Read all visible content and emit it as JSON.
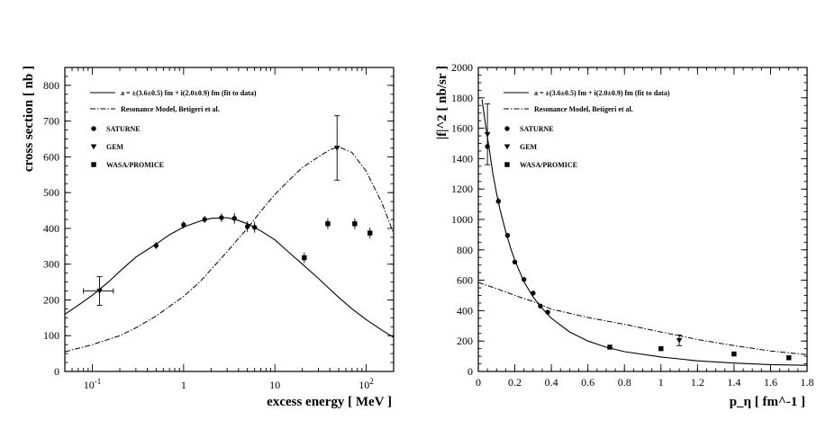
{
  "chart_data": [
    {
      "type": "scatter",
      "xscale": "log",
      "xlabel": "excess energy [ MeV ]",
      "ylabel": "cross section [ nb ]",
      "xlim": [
        0.05,
        200
      ],
      "ylim": [
        0,
        850
      ],
      "xticks": [
        {
          "v": 0.1,
          "base": "10",
          "exp": "-1"
        },
        {
          "v": 1,
          "base": "1",
          "exp": ""
        },
        {
          "v": 10,
          "base": "10",
          "exp": ""
        },
        {
          "v": 100,
          "base": "10",
          "exp": "2"
        }
      ],
      "yticks": [
        0,
        100,
        200,
        300,
        400,
        500,
        600,
        700,
        800
      ],
      "legend": [
        {
          "symbol": "line",
          "label": "a = ±(3.6±0.5) fm + i(2.0±0.9) fm (fit to data)"
        },
        {
          "symbol": "dashdot",
          "label": "Resonance Model, Betigeri et al."
        },
        {
          "symbol": "circle",
          "label": "SATURNE"
        },
        {
          "symbol": "triangle",
          "label": "GEM"
        },
        {
          "symbol": "square",
          "label": "WASA/PROMICE"
        }
      ],
      "series": [
        {
          "name": "a = ±(3.6±0.5) fm + i(2.0±0.9) fm (fit to data)",
          "kind": "line",
          "points": [
            [
              0.05,
              160
            ],
            [
              0.07,
              185
            ],
            [
              0.1,
              213
            ],
            [
              0.15,
              250
            ],
            [
              0.2,
              280
            ],
            [
              0.3,
              320
            ],
            [
              0.5,
              356
            ],
            [
              0.7,
              382
            ],
            [
              1,
              404
            ],
            [
              1.5,
              420
            ],
            [
              2,
              428
            ],
            [
              3,
              430
            ],
            [
              4,
              422
            ],
            [
              5,
              413
            ],
            [
              7,
              393
            ],
            [
              10,
              368
            ],
            [
              15,
              328
            ],
            [
              20,
              300
            ],
            [
              30,
              260
            ],
            [
              50,
              207
            ],
            [
              70,
              175
            ],
            [
              100,
              145
            ],
            [
              150,
              115
            ],
            [
              200,
              95
            ]
          ]
        },
        {
          "name": "Resonance Model, Betigeri et al.",
          "kind": "dashdot",
          "points": [
            [
              0.05,
              55
            ],
            [
              0.1,
              75
            ],
            [
              0.2,
              100
            ],
            [
              0.3,
              122
            ],
            [
              0.5,
              155
            ],
            [
              1,
              210
            ],
            [
              1.5,
              250
            ],
            [
              2,
              285
            ],
            [
              3,
              335
            ],
            [
              4,
              372
            ],
            [
              5,
              400
            ],
            [
              7,
              448
            ],
            [
              10,
              495
            ],
            [
              15,
              540
            ],
            [
              20,
              570
            ],
            [
              30,
              600
            ],
            [
              40,
              620
            ],
            [
              50,
              628
            ],
            [
              70,
              612
            ],
            [
              100,
              560
            ],
            [
              150,
              470
            ],
            [
              200,
              385
            ]
          ]
        },
        {
          "name": "SATURNE",
          "kind": "circle",
          "points": [
            [
              0.5,
              352,
              10
            ],
            [
              1,
              410,
              10
            ],
            [
              1.7,
              425,
              10
            ],
            [
              2.6,
              430,
              12
            ],
            [
              3.6,
              428,
              15
            ],
            [
              5,
              405,
              15
            ],
            [
              6,
              403,
              15
            ]
          ]
        },
        {
          "name": "GEM",
          "kind": "triangle",
          "points": [
            [
              0.12,
              225,
              40,
              0.08,
              0.17
            ],
            [
              48,
              625,
              90,
              null,
              null
            ]
          ]
        },
        {
          "name": "WASA/PROMICE",
          "kind": "square",
          "points": [
            [
              21,
              318,
              15
            ],
            [
              38,
              413,
              15
            ],
            [
              75,
              413,
              15
            ],
            [
              110,
              387,
              15
            ]
          ]
        }
      ]
    },
    {
      "type": "scatter",
      "xscale": "linear",
      "xlabel": "p_η [ fm^-1 ]",
      "ylabel": "|f|^2 [ nb/sr ]",
      "xlim": [
        0,
        1.8
      ],
      "ylim": [
        0,
        2000
      ],
      "xticks": [
        0,
        0.2,
        0.4,
        0.6,
        0.8,
        1,
        1.2,
        1.4,
        1.6,
        1.8
      ],
      "yticks": [
        0,
        200,
        400,
        600,
        800,
        1000,
        1200,
        1400,
        1600,
        1800,
        2000
      ],
      "legend": [
        {
          "symbol": "line",
          "label": "a = ±(3.6±0.5) fm + i(2.0±0.9) fm (fit to data)"
        },
        {
          "symbol": "dashdot",
          "label": "Resonance Model, Betigeri et al."
        },
        {
          "symbol": "circle",
          "label": "SATURNE"
        },
        {
          "symbol": "triangle",
          "label": "GEM"
        },
        {
          "symbol": "square",
          "label": "WASA/PROMICE"
        }
      ],
      "series": [
        {
          "name": "a = ±(3.6±0.5) fm + i(2.0±0.9) fm (fit to data)",
          "kind": "line",
          "points": [
            [
              0.02,
              1790
            ],
            [
              0.04,
              1620
            ],
            [
              0.06,
              1460
            ],
            [
              0.08,
              1300
            ],
            [
              0.1,
              1170
            ],
            [
              0.12,
              1060
            ],
            [
              0.15,
              920
            ],
            [
              0.18,
              800
            ],
            [
              0.2,
              730
            ],
            [
              0.25,
              590
            ],
            [
              0.3,
              490
            ],
            [
              0.35,
              415
            ],
            [
              0.4,
              350
            ],
            [
              0.5,
              260
            ],
            [
              0.6,
              200
            ],
            [
              0.7,
              160
            ],
            [
              0.8,
              130
            ],
            [
              1,
              95
            ],
            [
              1.2,
              70
            ],
            [
              1.4,
              55
            ],
            [
              1.6,
              45
            ],
            [
              1.8,
              40
            ]
          ]
        },
        {
          "name": "Resonance Model, Betigeri et al.",
          "kind": "dashdot",
          "points": [
            [
              0,
              585
            ],
            [
              0.1,
              545
            ],
            [
              0.2,
              500
            ],
            [
              0.3,
              460
            ],
            [
              0.4,
              410
            ],
            [
              0.6,
              355
            ],
            [
              0.8,
              310
            ],
            [
              1,
              260
            ],
            [
              1.2,
              210
            ],
            [
              1.4,
              170
            ],
            [
              1.6,
              135
            ],
            [
              1.8,
              110
            ]
          ]
        },
        {
          "name": "SATURNE",
          "kind": "circle",
          "points": [
            [
              0.05,
              1480,
              20
            ],
            [
              0.11,
              1120,
              20
            ],
            [
              0.16,
              895,
              15
            ],
            [
              0.2,
              720,
              12
            ],
            [
              0.25,
              605,
              12
            ],
            [
              0.3,
              515,
              12
            ],
            [
              0.34,
              430,
              12
            ],
            [
              0.38,
              390,
              12
            ]
          ]
        },
        {
          "name": "GEM",
          "kind": "triangle",
          "points": [
            [
              0.05,
              1560,
              200
            ],
            [
              1.1,
              205,
              35
            ]
          ]
        },
        {
          "name": "WASA/PROMICE",
          "kind": "square",
          "points": [
            [
              0.72,
              160,
              10
            ],
            [
              1.0,
              150,
              10
            ],
            [
              1.4,
              115,
              10
            ],
            [
              1.7,
              90,
              10
            ]
          ]
        }
      ]
    }
  ]
}
